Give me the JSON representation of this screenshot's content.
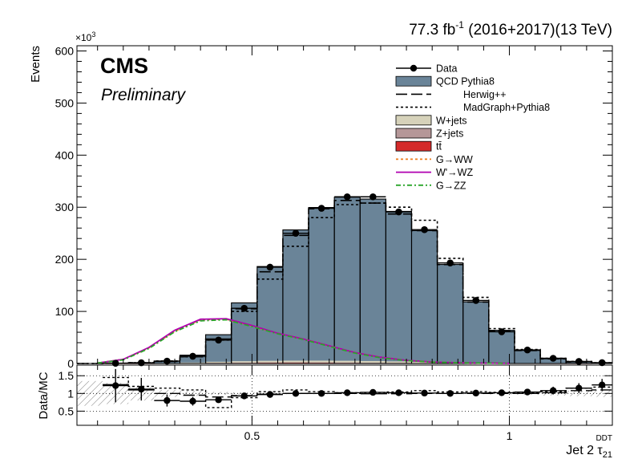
{
  "header": {
    "lumi": "77.3 fb",
    "lumi_sup": "-1",
    "lumi_rest": " (2016+2017)(13 TeV)",
    "cms": "CMS",
    "preliminary": "Preliminary",
    "scale": "×10",
    "scale_sup": "3"
  },
  "chart_data": {
    "type": "bar",
    "ylabel": "Events",
    "ratio_ylabel": "Data/MC",
    "xlabel_main": "Jet 2 τ",
    "xlabel_sup": "DDT",
    "xlabel_sub": "21",
    "xlim": [
      0.16,
      1.2
    ],
    "ylim": [
      0,
      610
    ],
    "y_unit_factor": 1000,
    "ratio_ylim": [
      0.1,
      1.8
    ],
    "x_ticks": [
      "0.5",
      "1"
    ],
    "y_ticks": [
      "0",
      "100",
      "200",
      "300",
      "400",
      "500",
      "600"
    ],
    "ratio_y_ticks": [
      "0.5",
      "1",
      "1.5"
    ],
    "bin_edges": [
      0.16,
      0.21,
      0.26,
      0.31,
      0.36,
      0.41,
      0.46,
      0.51,
      0.56,
      0.61,
      0.66,
      0.71,
      0.76,
      0.81,
      0.86,
      0.91,
      0.96,
      1.01,
      1.06,
      1.11,
      1.16,
      1.2
    ],
    "x_centers": [
      0.185,
      0.235,
      0.285,
      0.335,
      0.385,
      0.435,
      0.485,
      0.535,
      0.585,
      0.635,
      0.685,
      0.735,
      0.785,
      0.835,
      0.885,
      0.935,
      0.985,
      1.035,
      1.085,
      1.135,
      1.18
    ],
    "stack": [
      {
        "name": "t",
        "color": "#d42a2a",
        "values": [
          0,
          0.02,
          0.05,
          0.2,
          0.6,
          1.0,
          1.3,
          1.5,
          1.6,
          1.5,
          1.4,
          1.2,
          1.0,
          0.8,
          0.5,
          0.3,
          0.2,
          0.1,
          0.05,
          0.02,
          0
        ]
      },
      {
        "name": "Z+jets",
        "color": "#b59798",
        "values": [
          0,
          0.01,
          0.02,
          0.1,
          0.3,
          0.5,
          0.6,
          0.7,
          0.7,
          0.7,
          0.6,
          0.5,
          0.4,
          0.3,
          0.2,
          0.1,
          0.05,
          0.03,
          0.02,
          0.01,
          0
        ]
      },
      {
        "name": "W+jets",
        "color": "#d6d2ba",
        "values": [
          0,
          0.02,
          0.05,
          0.3,
          1.0,
          1.8,
          2.5,
          3.0,
          3.2,
          3.3,
          3.2,
          3.0,
          2.6,
          2.0,
          1.4,
          0.9,
          0.5,
          0.3,
          0.1,
          0.05,
          0
        ]
      },
      {
        "name": "QCD Pythia8",
        "color": "#6a8498",
        "values": [
          0,
          0.45,
          1.4,
          4.2,
          14.2,
          52,
          112,
          181,
          251,
          294,
          314,
          311,
          288,
          252,
          188,
          117,
          63,
          24.6,
          8.9,
          3.0,
          1.0
        ]
      }
    ],
    "series": [
      {
        "name": "Data",
        "style": "markers",
        "values": [
          0,
          0.5,
          1.5,
          4.5,
          14,
          45,
          106,
          185,
          250,
          298,
          320,
          320,
          291,
          257,
          193,
          121,
          61,
          26,
          10,
          4,
          1.6
        ]
      },
      {
        "name": "Herwig++",
        "style": "dashed",
        "values": [
          0,
          0.4,
          1.4,
          4.0,
          13,
          47,
          105,
          176,
          246,
          297,
          313,
          308,
          287,
          255,
          190,
          118,
          62,
          25,
          9,
          3,
          1
        ]
      },
      {
        "name": "MadGraph+Pythia8",
        "style": "dotted",
        "values": [
          0,
          0.5,
          1.5,
          5.0,
          13,
          45,
          100,
          162,
          225,
          280,
          305,
          308,
          300,
          275,
          202,
          127,
          67,
          27,
          10,
          4,
          1.5
        ]
      }
    ],
    "signals": [
      {
        "name": "G→WW",
        "color": "#ee7d1c",
        "style": "dotted",
        "x": [
          0.2,
          0.25,
          0.3,
          0.35,
          0.4,
          0.45,
          0.5,
          0.55,
          0.6,
          0.65,
          0.7,
          0.75,
          0.8,
          0.85,
          0.9,
          0.95,
          1.0
        ],
        "values": [
          1,
          8,
          30,
          62,
          84,
          85,
          72,
          58,
          47,
          34,
          21,
          12,
          6,
          3,
          1.5,
          0.8,
          0.3
        ]
      },
      {
        "name": "W'→WZ",
        "color": "#b000b0",
        "style": "solid",
        "x": [
          0.2,
          0.25,
          0.3,
          0.35,
          0.4,
          0.45,
          0.5,
          0.55,
          0.6,
          0.65,
          0.7,
          0.75,
          0.8,
          0.85,
          0.9,
          0.95,
          1.0
        ],
        "values": [
          1,
          8,
          31,
          64,
          85,
          86,
          73,
          58,
          47,
          34,
          21,
          12,
          6,
          3,
          1.5,
          0.8,
          0.3
        ]
      },
      {
        "name": "G→ZZ",
        "color": "#2aa52a",
        "style": "dashdot",
        "x": [
          0.2,
          0.25,
          0.3,
          0.35,
          0.4,
          0.45,
          0.5,
          0.55,
          0.6,
          0.65,
          0.7,
          0.75,
          0.8,
          0.85,
          0.9,
          0.95,
          1.0
        ],
        "values": [
          1,
          7,
          29,
          61,
          82,
          84,
          71,
          57,
          46,
          33,
          20,
          11,
          5.5,
          2.8,
          1.4,
          0.7,
          0.3
        ]
      }
    ],
    "ratio": {
      "data": [
        null,
        1.22,
        1.12,
        0.8,
        0.78,
        0.82,
        0.93,
        0.97,
        1.0,
        1.0,
        1.02,
        1.03,
        1.02,
        1.01,
        1.0,
        1.01,
        1.02,
        1.04,
        1.08,
        1.15,
        1.24
      ],
      "herwig": [
        null,
        1.25,
        1.1,
        1.0,
        0.95,
        0.9,
        0.94,
        0.98,
        1.0,
        1.0,
        1.0,
        0.99,
        0.99,
        1.0,
        1.0,
        1.0,
        1.0,
        1.0,
        1.02,
        1.08,
        1.1
      ],
      "madgraph": [
        null,
        1.45,
        1.2,
        1.15,
        1.1,
        0.6,
        0.88,
        1.05,
        1.1,
        1.05,
        1.02,
        1.0,
        1.04,
        1.08,
        1.04,
        1.05,
        1.03,
        1.02,
        1.05,
        1.15,
        1.18
      ],
      "unc_half": [
        0.35,
        0.3,
        0.2,
        0.1,
        0.07,
        0.04,
        0.03,
        0.02,
        0.02,
        0.02,
        0.02,
        0.02,
        0.02,
        0.02,
        0.02,
        0.02,
        0.03,
        0.04,
        0.06,
        0.08,
        0.1
      ]
    },
    "legend": {
      "placement": "top-right",
      "entries": [
        {
          "label": "Data",
          "kind": "marker"
        },
        {
          "label": "QCD Pythia8",
          "kind": "fill",
          "color": "#6a8498"
        },
        {
          "label": "Herwig++",
          "kind": "dashed"
        },
        {
          "label": "MadGraph+Pythia8",
          "kind": "dotted"
        },
        {
          "label": "W+jets",
          "kind": "fill",
          "color": "#d6d2ba"
        },
        {
          "label": "Z+jets",
          "kind": "fill",
          "color": "#b59798"
        },
        {
          "label": "tt̄",
          "kind": "fill",
          "color": "#d42a2a"
        },
        {
          "label": "G→WW",
          "kind": "line",
          "color": "#ee7d1c",
          "dash": "dotted"
        },
        {
          "label": "W'→WZ",
          "kind": "line",
          "color": "#b000b0",
          "dash": "solid"
        },
        {
          "label": "G→ZZ",
          "kind": "line",
          "color": "#2aa52a",
          "dash": "dashdot"
        }
      ]
    }
  }
}
